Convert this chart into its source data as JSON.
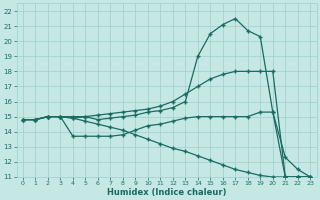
{
  "xlabel": "Humidex (Indice chaleur)",
  "xlim": [
    -0.5,
    23.5
  ],
  "ylim": [
    11,
    22.5
  ],
  "xticks": [
    0,
    1,
    2,
    3,
    4,
    5,
    6,
    7,
    8,
    9,
    10,
    11,
    12,
    13,
    14,
    15,
    16,
    17,
    18,
    19,
    20,
    21,
    22,
    23
  ],
  "yticks": [
    11,
    12,
    13,
    14,
    15,
    16,
    17,
    18,
    19,
    20,
    21,
    22
  ],
  "bg_color": "#c5e8e5",
  "line_color": "#1a6b60",
  "grid_color": "#9dcfcb",
  "line1_x": [
    0,
    1,
    2,
    3,
    4,
    5,
    6,
    7,
    8,
    9,
    10,
    11,
    12,
    13,
    14,
    15,
    16,
    17,
    18,
    19,
    20,
    21,
    22,
    23
  ],
  "line1_y": [
    14.8,
    14.8,
    15.0,
    15.0,
    15.0,
    15.0,
    14.8,
    14.9,
    15.0,
    15.1,
    15.3,
    15.4,
    15.6,
    16.0,
    19.0,
    20.5,
    21.1,
    21.5,
    20.7,
    20.3,
    15.3,
    11.0,
    11.0,
    11.0
  ],
  "line2_x": [
    0,
    1,
    2,
    3,
    4,
    5,
    6,
    7,
    8,
    9,
    10,
    11,
    12,
    13,
    14,
    15,
    16,
    17,
    18,
    19,
    20,
    21,
    22,
    23
  ],
  "line2_y": [
    14.8,
    14.8,
    15.0,
    15.0,
    14.9,
    15.0,
    15.1,
    15.2,
    15.3,
    15.4,
    15.5,
    15.7,
    16.0,
    16.5,
    17.0,
    17.5,
    17.8,
    18.0,
    18.0,
    18.0,
    18.0,
    11.0,
    11.0,
    11.0
  ],
  "line3_x": [
    0,
    1,
    2,
    3,
    4,
    5,
    6,
    7,
    8,
    9,
    10,
    11,
    12,
    13,
    14,
    15,
    16,
    17,
    18,
    19,
    20,
    21,
    22,
    23
  ],
  "line3_y": [
    14.8,
    14.8,
    15.0,
    15.0,
    13.7,
    13.7,
    13.7,
    13.7,
    13.8,
    14.1,
    14.4,
    14.5,
    14.7,
    14.9,
    15.0,
    15.0,
    15.0,
    15.0,
    15.0,
    15.3,
    15.3,
    12.3,
    11.5,
    11.0
  ],
  "line4_x": [
    0,
    1,
    2,
    3,
    4,
    5,
    6,
    7,
    8,
    9,
    10,
    11,
    12,
    13,
    14,
    15,
    16,
    17,
    18,
    19,
    20,
    21,
    22,
    23
  ],
  "line4_y": [
    14.8,
    14.8,
    15.0,
    15.0,
    14.9,
    14.7,
    14.5,
    14.3,
    14.1,
    13.8,
    13.5,
    13.2,
    12.9,
    12.7,
    12.4,
    12.1,
    11.8,
    11.5,
    11.3,
    11.1,
    11.0,
    11.0,
    11.0,
    11.0
  ]
}
